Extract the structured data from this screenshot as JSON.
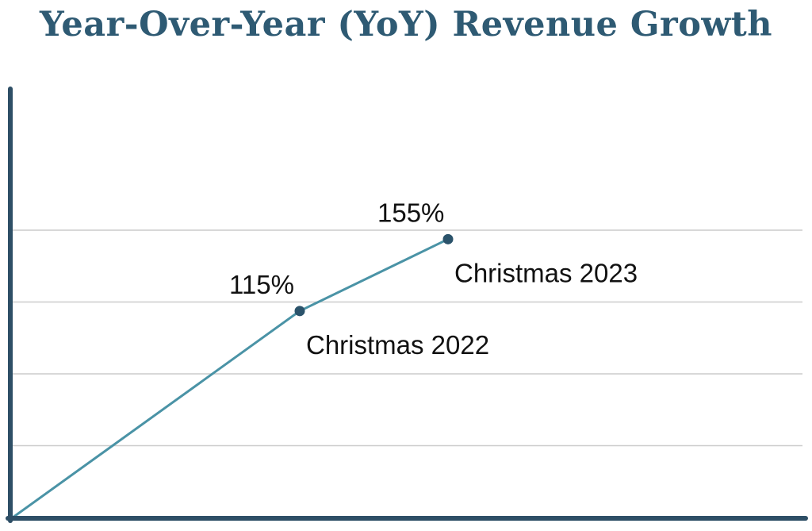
{
  "colors": {
    "title": "#2e5a73",
    "axis": "#2e4f66",
    "line": "#4a93a6",
    "marker": "#2b536b",
    "grid": "#cccccc"
  },
  "chart_data": {
    "type": "line",
    "title": "Year-Over-Year (YoY) Revenue Growth",
    "xlabel": "",
    "ylabel": "",
    "grid": true,
    "legend": "none",
    "ylim": [
      0,
      200
    ],
    "points": [
      {
        "x": 0,
        "y": 0,
        "value_label": "",
        "category_label": ""
      },
      {
        "x": 1,
        "y": 115,
        "value_label": "115%",
        "category_label": "Christmas 2022"
      },
      {
        "x": 2,
        "y": 155,
        "value_label": "155%",
        "category_label": "Christmas 2023"
      }
    ]
  }
}
